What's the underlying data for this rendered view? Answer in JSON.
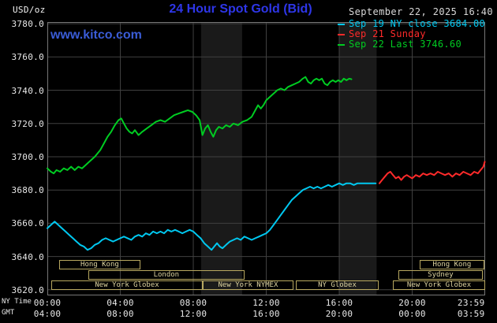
{
  "header": {
    "units": "USD/oz",
    "title": "24 Hour Spot Gold (Bid)",
    "datetime": "September 22, 2025 16:40",
    "watermark": "www.kitco.com"
  },
  "legend": [
    {
      "label": "Sep 19 NY close 3684.00",
      "color": "#00c8f0"
    },
    {
      "label": "Sep 21 Sunday",
      "color": "#ff2a2a"
    },
    {
      "label": "Sep 22 Last 3746.60",
      "color": "#00cc22"
    }
  ],
  "axis_labels": {
    "ny_time": "NY Time",
    "gmt": "GMT"
  },
  "chart_data": {
    "type": "line",
    "title": "24 Hour Spot Gold (Bid)",
    "ylabel": "USD/oz",
    "x_unit": "hour (NY time)",
    "x_range": [
      0,
      24
    ],
    "y_range": [
      3616.6,
      3781.0
    ],
    "grid": true,
    "legend_position": "top-right",
    "colors": {
      "grid": "#404040",
      "border": "#777777",
      "band": "#1a1a1a",
      "session_border": "#b8a860",
      "session_text": "#ded4a0"
    },
    "y_ticks": [
      {
        "v": 3780,
        "label": "3780.0"
      },
      {
        "v": 3760,
        "label": "3760.0"
      },
      {
        "v": 3740,
        "label": "3740.0"
      },
      {
        "v": 3720,
        "label": "3720.0"
      },
      {
        "v": 3700,
        "label": "3700.0"
      },
      {
        "v": 3680,
        "label": "3680.0"
      },
      {
        "v": 3660,
        "label": "3660.0"
      },
      {
        "v": 3640,
        "label": "3640.0"
      },
      {
        "v": 3620,
        "label": "3620.0"
      }
    ],
    "x_ticks": [
      {
        "h": 0,
        "ny": "00:00",
        "gmt": "04:00"
      },
      {
        "h": 4,
        "ny": "04:00",
        "gmt": "08:00"
      },
      {
        "h": 8,
        "ny": "08:00",
        "gmt": "12:00"
      },
      {
        "h": 12,
        "ny": "12:00",
        "gmt": "16:00"
      },
      {
        "h": 16,
        "ny": "16:00",
        "gmt": "20:00"
      },
      {
        "h": 20,
        "ny": "20:00",
        "gmt": "00:00"
      },
      {
        "h": 23.98,
        "ny": "23:59",
        "gmt": "03:59"
      }
    ],
    "grid_hours": [
      4,
      8,
      12,
      16,
      20
    ],
    "bands": [
      {
        "from": 8.43,
        "to": 10.68
      },
      {
        "from": 16.0,
        "to": 18.05
      }
    ],
    "sessions": [
      {
        "row": 0,
        "label": "Hong Kong",
        "from": 0.65,
        "to": 5.1
      },
      {
        "row": 0,
        "label": "Hong Kong",
        "from": 20.4,
        "to": 23.96
      },
      {
        "row": 1,
        "label": "London",
        "from": 2.25,
        "to": 10.8
      },
      {
        "row": 1,
        "label": "Sydney",
        "from": 19.24,
        "to": 23.87
      },
      {
        "row": 2,
        "label": "New York Globex",
        "from": 0.22,
        "to": 8.52
      },
      {
        "row": 2,
        "label": "New York NYMEX",
        "from": 8.52,
        "to": 13.49
      },
      {
        "row": 2,
        "label": "NY Globex",
        "from": 13.62,
        "to": 18.16
      },
      {
        "row": 2,
        "label": "New York Globex",
        "from": 18.94,
        "to": 24
      }
    ],
    "series": [
      {
        "name": "Sep 19 NY close 3684.00",
        "color": "#00c8f0",
        "points": [
          [
            0,
            3657
          ],
          [
            0.2,
            3659
          ],
          [
            0.4,
            3661
          ],
          [
            0.6,
            3659
          ],
          [
            0.8,
            3657
          ],
          [
            1.0,
            3655
          ],
          [
            1.2,
            3653
          ],
          [
            1.4,
            3651
          ],
          [
            1.6,
            3649
          ],
          [
            1.8,
            3647
          ],
          [
            2.0,
            3646
          ],
          [
            2.2,
            3644
          ],
          [
            2.4,
            3645
          ],
          [
            2.6,
            3647
          ],
          [
            2.8,
            3648
          ],
          [
            3.0,
            3650
          ],
          [
            3.2,
            3651
          ],
          [
            3.4,
            3650
          ],
          [
            3.6,
            3649
          ],
          [
            3.8,
            3650
          ],
          [
            4.0,
            3651
          ],
          [
            4.2,
            3652
          ],
          [
            4.4,
            3651
          ],
          [
            4.6,
            3650
          ],
          [
            4.8,
            3652
          ],
          [
            5.0,
            3653
          ],
          [
            5.2,
            3652
          ],
          [
            5.4,
            3654
          ],
          [
            5.6,
            3653
          ],
          [
            5.8,
            3655
          ],
          [
            6.0,
            3654
          ],
          [
            6.2,
            3655
          ],
          [
            6.4,
            3654
          ],
          [
            6.6,
            3656
          ],
          [
            6.8,
            3655
          ],
          [
            7.0,
            3656
          ],
          [
            7.2,
            3655
          ],
          [
            7.4,
            3654
          ],
          [
            7.6,
            3655
          ],
          [
            7.8,
            3656
          ],
          [
            8.0,
            3655
          ],
          [
            8.2,
            3653
          ],
          [
            8.4,
            3651
          ],
          [
            8.6,
            3648
          ],
          [
            8.8,
            3646
          ],
          [
            9.0,
            3644
          ],
          [
            9.15,
            3646
          ],
          [
            9.3,
            3648
          ],
          [
            9.45,
            3646
          ],
          [
            9.6,
            3645
          ],
          [
            9.8,
            3647
          ],
          [
            10.0,
            3649
          ],
          [
            10.2,
            3650
          ],
          [
            10.4,
            3651
          ],
          [
            10.6,
            3650
          ],
          [
            10.8,
            3652
          ],
          [
            11.0,
            3651
          ],
          [
            11.2,
            3650
          ],
          [
            11.4,
            3651
          ],
          [
            11.6,
            3652
          ],
          [
            11.8,
            3653
          ],
          [
            12.0,
            3654
          ],
          [
            12.2,
            3656
          ],
          [
            12.4,
            3659
          ],
          [
            12.6,
            3662
          ],
          [
            12.8,
            3665
          ],
          [
            13.0,
            3668
          ],
          [
            13.2,
            3671
          ],
          [
            13.4,
            3674
          ],
          [
            13.6,
            3676
          ],
          [
            13.8,
            3678
          ],
          [
            14.0,
            3680
          ],
          [
            14.2,
            3681
          ],
          [
            14.4,
            3682
          ],
          [
            14.6,
            3681
          ],
          [
            14.8,
            3682
          ],
          [
            15.0,
            3681
          ],
          [
            15.2,
            3682
          ],
          [
            15.4,
            3683
          ],
          [
            15.6,
            3682
          ],
          [
            15.8,
            3683
          ],
          [
            16.0,
            3684
          ],
          [
            16.2,
            3683
          ],
          [
            16.4,
            3684
          ],
          [
            16.6,
            3684
          ],
          [
            16.8,
            3683
          ],
          [
            17.0,
            3684
          ],
          [
            17.3,
            3684
          ],
          [
            17.6,
            3684
          ],
          [
            18.0,
            3684
          ]
        ]
      },
      {
        "name": "Sep 21 Sunday",
        "color": "#ff2a2a",
        "points": [
          [
            18.2,
            3684
          ],
          [
            18.35,
            3686
          ],
          [
            18.5,
            3688
          ],
          [
            18.65,
            3690
          ],
          [
            18.8,
            3691
          ],
          [
            18.95,
            3689
          ],
          [
            19.1,
            3687
          ],
          [
            19.25,
            3688
          ],
          [
            19.4,
            3686
          ],
          [
            19.55,
            3688
          ],
          [
            19.7,
            3689
          ],
          [
            19.85,
            3688
          ],
          [
            20.0,
            3687
          ],
          [
            20.2,
            3689
          ],
          [
            20.4,
            3688
          ],
          [
            20.6,
            3690
          ],
          [
            20.8,
            3689
          ],
          [
            21.0,
            3690
          ],
          [
            21.2,
            3689
          ],
          [
            21.4,
            3691
          ],
          [
            21.6,
            3690
          ],
          [
            21.8,
            3689
          ],
          [
            22.0,
            3690
          ],
          [
            22.2,
            3688
          ],
          [
            22.4,
            3690
          ],
          [
            22.6,
            3689
          ],
          [
            22.8,
            3691
          ],
          [
            23.0,
            3690
          ],
          [
            23.2,
            3689
          ],
          [
            23.4,
            3691
          ],
          [
            23.6,
            3690
          ],
          [
            23.75,
            3692
          ],
          [
            23.9,
            3694
          ],
          [
            23.98,
            3697
          ]
        ]
      },
      {
        "name": "Sep 22 Last 3746.60",
        "color": "#00cc22",
        "points": [
          [
            0,
            3693
          ],
          [
            0.2,
            3691
          ],
          [
            0.35,
            3690
          ],
          [
            0.5,
            3692
          ],
          [
            0.7,
            3691
          ],
          [
            0.9,
            3693
          ],
          [
            1.1,
            3692
          ],
          [
            1.3,
            3694
          ],
          [
            1.5,
            3692
          ],
          [
            1.7,
            3694
          ],
          [
            1.9,
            3693
          ],
          [
            2.1,
            3695
          ],
          [
            2.3,
            3697
          ],
          [
            2.6,
            3700
          ],
          [
            2.9,
            3704
          ],
          [
            3.1,
            3708
          ],
          [
            3.3,
            3712
          ],
          [
            3.5,
            3715
          ],
          [
            3.7,
            3719
          ],
          [
            3.9,
            3722
          ],
          [
            4.05,
            3723
          ],
          [
            4.2,
            3720
          ],
          [
            4.35,
            3717
          ],
          [
            4.5,
            3715
          ],
          [
            4.65,
            3714
          ],
          [
            4.8,
            3716
          ],
          [
            5.0,
            3713
          ],
          [
            5.2,
            3715
          ],
          [
            5.45,
            3717
          ],
          [
            5.7,
            3719
          ],
          [
            5.95,
            3721
          ],
          [
            6.2,
            3722
          ],
          [
            6.45,
            3721
          ],
          [
            6.7,
            3723
          ],
          [
            6.95,
            3725
          ],
          [
            7.2,
            3726
          ],
          [
            7.45,
            3727
          ],
          [
            7.7,
            3728
          ],
          [
            7.95,
            3727
          ],
          [
            8.15,
            3725
          ],
          [
            8.35,
            3722
          ],
          [
            8.5,
            3713
          ],
          [
            8.65,
            3717
          ],
          [
            8.8,
            3719
          ],
          [
            8.95,
            3715
          ],
          [
            9.1,
            3712
          ],
          [
            9.25,
            3716
          ],
          [
            9.4,
            3718
          ],
          [
            9.6,
            3717
          ],
          [
            9.8,
            3719
          ],
          [
            10.0,
            3718
          ],
          [
            10.2,
            3720
          ],
          [
            10.45,
            3719
          ],
          [
            10.7,
            3721
          ],
          [
            10.95,
            3722
          ],
          [
            11.2,
            3724
          ],
          [
            11.4,
            3728
          ],
          [
            11.55,
            3731
          ],
          [
            11.7,
            3729
          ],
          [
            11.85,
            3731
          ],
          [
            12.0,
            3734
          ],
          [
            12.2,
            3736
          ],
          [
            12.4,
            3738
          ],
          [
            12.6,
            3740
          ],
          [
            12.8,
            3741
          ],
          [
            13.0,
            3740
          ],
          [
            13.2,
            3742
          ],
          [
            13.4,
            3743
          ],
          [
            13.6,
            3744
          ],
          [
            13.8,
            3745
          ],
          [
            14.0,
            3747
          ],
          [
            14.15,
            3748
          ],
          [
            14.3,
            3745
          ],
          [
            14.45,
            3744
          ],
          [
            14.6,
            3746
          ],
          [
            14.75,
            3747
          ],
          [
            14.9,
            3746
          ],
          [
            15.05,
            3747
          ],
          [
            15.2,
            3744
          ],
          [
            15.35,
            3743
          ],
          [
            15.5,
            3745
          ],
          [
            15.65,
            3746
          ],
          [
            15.8,
            3745
          ],
          [
            15.95,
            3746
          ],
          [
            16.1,
            3745
          ],
          [
            16.25,
            3747
          ],
          [
            16.4,
            3746
          ],
          [
            16.55,
            3747
          ],
          [
            16.67,
            3746.6
          ]
        ]
      }
    ]
  }
}
